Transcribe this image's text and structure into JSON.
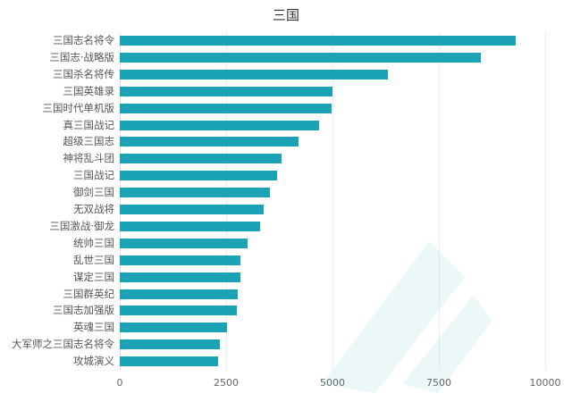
{
  "chart_data": {
    "type": "bar",
    "orientation": "horizontal",
    "title": "三国",
    "xlabel": "",
    "ylabel": "",
    "xlim": [
      0,
      10000
    ],
    "x_ticks": [
      "0",
      "2500",
      "5000",
      "7500",
      "10000"
    ],
    "grid": true,
    "legend": null,
    "color": "#1ba3b5",
    "categories": [
      "三国志名将令",
      "三国志·战略版",
      "三国杀名将传",
      "三国英雄录",
      "三国时代单机版",
      "真三国战记",
      "超级三国志",
      "神将乱斗团",
      "三国战记",
      "御剑三国",
      "无双战将",
      "三国激战·御龙",
      "统帅三国",
      "乱世三国",
      "谋定三国",
      "三国群英纪",
      "三国志加强版",
      "英魂三国",
      "大军师之三国志名将令",
      "攻城演义"
    ],
    "values": [
      9300,
      8490,
      6300,
      5000,
      4980,
      4690,
      4200,
      3800,
      3700,
      3530,
      3380,
      3300,
      3000,
      2840,
      2840,
      2770,
      2750,
      2520,
      2350,
      2310
    ]
  }
}
